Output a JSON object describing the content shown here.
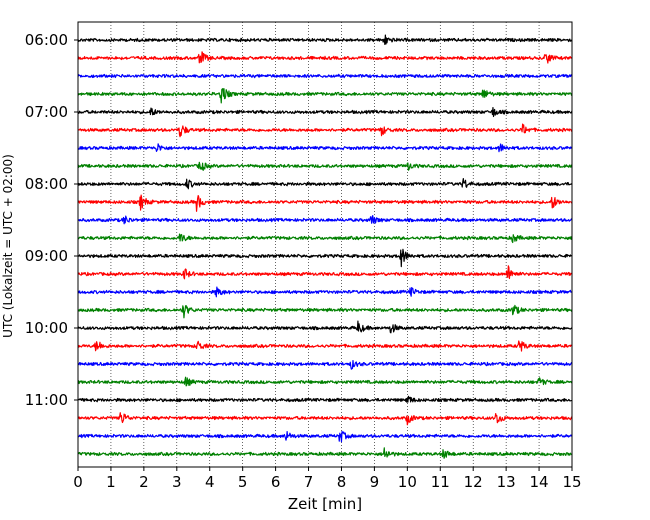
{
  "chart_data": {
    "type": "line",
    "title": "",
    "xlabel": "Zeit  [min]",
    "ylabel": "UTC (Lokalzeit = UTC + 02:00)",
    "xlim": [
      0,
      15
    ],
    "x_ticks": [
      0,
      1,
      2,
      3,
      4,
      5,
      6,
      7,
      8,
      9,
      10,
      11,
      12,
      13,
      14,
      15
    ],
    "y_tick_labels": [
      "06:00",
      "07:00",
      "08:00",
      "09:00",
      "10:00",
      "11:00"
    ],
    "row_start": "06:00",
    "row_interval_min": 15,
    "trace_colors": [
      "#000000",
      "#ff0000",
      "#0000ff",
      "#008000"
    ],
    "grid": "vertical dotted",
    "legend": "none",
    "rows": [
      {
        "start": "06:00",
        "color": "#000000",
        "events": [
          [
            9.3,
            1.0
          ]
        ]
      },
      {
        "start": "06:15",
        "color": "#ff0000",
        "events": [
          [
            3.7,
            1.6
          ],
          [
            14.2,
            1.3
          ]
        ]
      },
      {
        "start": "06:30",
        "color": "#0000ff",
        "events": []
      },
      {
        "start": "06:45",
        "color": "#008000",
        "events": [
          [
            4.35,
            2.0
          ],
          [
            12.3,
            1.0
          ]
        ]
      },
      {
        "start": "07:00",
        "color": "#000000",
        "events": [
          [
            2.2,
            0.8
          ],
          [
            12.6,
            0.8
          ]
        ]
      },
      {
        "start": "07:15",
        "color": "#ff0000",
        "events": [
          [
            3.1,
            1.4
          ],
          [
            9.2,
            1.0
          ],
          [
            13.5,
            1.0
          ]
        ]
      },
      {
        "start": "07:30",
        "color": "#0000ff",
        "events": [
          [
            2.4,
            0.8
          ],
          [
            12.8,
            0.8
          ]
        ]
      },
      {
        "start": "07:45",
        "color": "#008000",
        "events": [
          [
            3.7,
            1.2
          ],
          [
            10.0,
            0.8
          ]
        ]
      },
      {
        "start": "08:00",
        "color": "#000000",
        "events": [
          [
            3.3,
            1.0
          ],
          [
            11.7,
            1.0
          ]
        ]
      },
      {
        "start": "08:15",
        "color": "#ff0000",
        "events": [
          [
            1.9,
            1.4
          ],
          [
            3.6,
            1.6
          ],
          [
            14.4,
            1.3
          ]
        ]
      },
      {
        "start": "08:30",
        "color": "#0000ff",
        "events": [
          [
            1.4,
            0.8
          ],
          [
            8.9,
            1.0
          ]
        ]
      },
      {
        "start": "08:45",
        "color": "#008000",
        "events": [
          [
            3.1,
            1.0
          ],
          [
            13.2,
            0.8
          ]
        ]
      },
      {
        "start": "09:00",
        "color": "#000000",
        "events": [
          [
            9.8,
            2.0
          ]
        ]
      },
      {
        "start": "09:15",
        "color": "#ff0000",
        "events": [
          [
            3.2,
            1.2
          ],
          [
            13.05,
            1.6
          ]
        ]
      },
      {
        "start": "09:30",
        "color": "#0000ff",
        "events": [
          [
            4.2,
            1.0
          ],
          [
            10.1,
            0.8
          ]
        ]
      },
      {
        "start": "09:45",
        "color": "#008000",
        "events": [
          [
            3.2,
            1.4
          ],
          [
            13.2,
            1.2
          ]
        ]
      },
      {
        "start": "10:00",
        "color": "#000000",
        "events": [
          [
            8.5,
            1.2
          ],
          [
            9.5,
            1.0
          ]
        ]
      },
      {
        "start": "10:15",
        "color": "#ff0000",
        "events": [
          [
            0.55,
            1.3
          ],
          [
            3.6,
            1.2
          ],
          [
            13.4,
            1.3
          ]
        ]
      },
      {
        "start": "10:30",
        "color": "#0000ff",
        "events": [
          [
            8.3,
            0.8
          ]
        ]
      },
      {
        "start": "10:45",
        "color": "#008000",
        "events": [
          [
            3.25,
            1.0
          ],
          [
            14.0,
            0.8
          ]
        ]
      },
      {
        "start": "11:00",
        "color": "#000000",
        "events": [
          [
            10.0,
            0.8
          ]
        ]
      },
      {
        "start": "11:15",
        "color": "#ff0000",
        "events": [
          [
            1.3,
            1.4
          ],
          [
            10.0,
            1.0
          ],
          [
            12.7,
            1.3
          ]
        ]
      },
      {
        "start": "11:30",
        "color": "#0000ff",
        "events": [
          [
            6.3,
            1.0
          ],
          [
            7.95,
            1.3
          ]
        ]
      },
      {
        "start": "11:45",
        "color": "#008000",
        "events": [
          [
            9.3,
            1.2
          ],
          [
            11.1,
            0.9
          ]
        ]
      }
    ]
  }
}
